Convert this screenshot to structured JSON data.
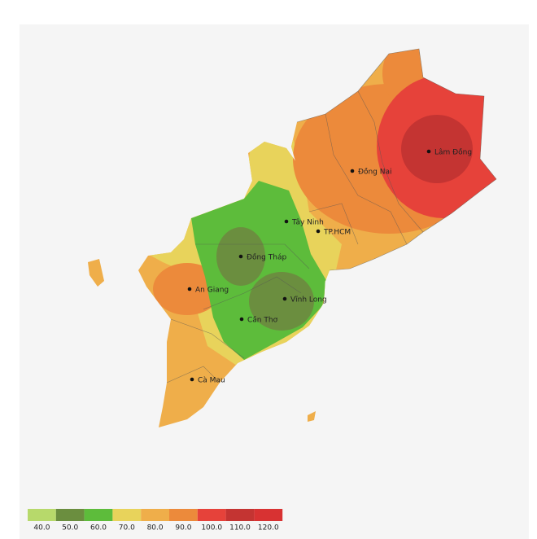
{
  "cities": [
    {
      "name": "Lâm Đồng"
    },
    {
      "name": "Đồng Nai"
    },
    {
      "name": "Tây Ninh"
    },
    {
      "name": "TP.HCM"
    },
    {
      "name": "Đồng Tháp"
    },
    {
      "name": "Vĩnh Long"
    },
    {
      "name": "An Giang"
    },
    {
      "name": "Cần Thơ"
    },
    {
      "name": "Cà Mau"
    }
  ],
  "legend": {
    "bins": [
      {
        "value": 40,
        "label": "40.0",
        "color": "#b7d96b"
      },
      {
        "value": 50,
        "label": "50.0",
        "color": "#6b8e3f"
      },
      {
        "value": 60,
        "label": "60.0",
        "color": "#5dbc3b"
      },
      {
        "value": 70,
        "label": "70.0",
        "color": "#e8d35b"
      },
      {
        "value": 80,
        "label": "80.0",
        "color": "#efae4a"
      },
      {
        "value": 90,
        "label": "90.0",
        "color": "#ec8a3b"
      },
      {
        "value": 100,
        "label": "100.0",
        "color": "#e6423a"
      },
      {
        "value": 110,
        "label": "110.0",
        "color": "#c43432"
      },
      {
        "value": 120,
        "label": "120.0",
        "color": "#d83232"
      }
    ]
  }
}
